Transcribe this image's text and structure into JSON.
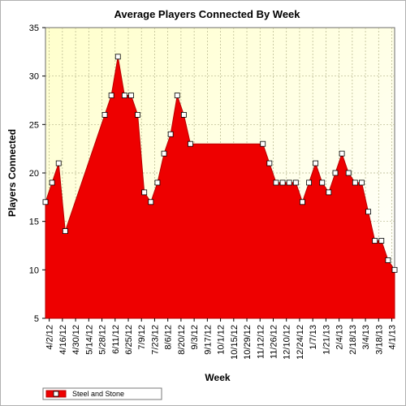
{
  "chart_data": {
    "type": "area",
    "title": "Average Players Connected By Week",
    "xlabel": "Week",
    "ylabel": "Players Connected",
    "ylim": [
      5,
      35
    ],
    "yticks": [
      5,
      10,
      15,
      20,
      25,
      30,
      35
    ],
    "grid": true,
    "legend_position": "bottom-left",
    "x_tick_labels": [
      "4/2/12",
      "4/16/12",
      "4/30/12",
      "5/14/12",
      "5/28/12",
      "6/11/12",
      "6/25/12",
      "7/9/12",
      "7/23/12",
      "8/6/12",
      "8/20/12",
      "9/3/12",
      "9/17/12",
      "10/1/12",
      "10/15/12",
      "10/29/12",
      "11/12/12",
      "11/26/12",
      "12/10/12",
      "12/24/12",
      "1/7/13",
      "1/21/13",
      "2/4/13",
      "2/18/13",
      "3/4/13",
      "3/18/13",
      "4/1/13"
    ],
    "colors": {
      "area": "#ee0000",
      "edge": "#b80000",
      "plot_bg_top": "#ffffcc",
      "plot_bg_bottom": "#ffffff",
      "grid": "#b4b48a",
      "marker_fill": "#ffffff"
    },
    "series": [
      {
        "name": "Steel and Stone",
        "points": [
          [
            "3/29/12",
            17
          ],
          [
            "4/5/12",
            19
          ],
          [
            "4/12/12",
            21
          ],
          [
            "4/19/12",
            14
          ],
          [
            "5/31/12",
            26
          ],
          [
            "6/7/12",
            28
          ],
          [
            "6/14/12",
            32
          ],
          [
            "6/21/12",
            28
          ],
          [
            "6/28/12",
            28
          ],
          [
            "7/5/12",
            26
          ],
          [
            "7/12/12",
            18
          ],
          [
            "7/19/12",
            17
          ],
          [
            "7/26/12",
            19
          ],
          [
            "8/2/12",
            22
          ],
          [
            "8/9/12",
            24
          ],
          [
            "8/16/12",
            28
          ],
          [
            "8/23/12",
            26
          ],
          [
            "8/30/12",
            23
          ],
          [
            "11/15/12",
            23
          ],
          [
            "11/22/12",
            21
          ],
          [
            "11/29/12",
            19
          ],
          [
            "12/6/12",
            19
          ],
          [
            "12/13/12",
            19
          ],
          [
            "12/20/12",
            19
          ],
          [
            "12/27/12",
            17
          ],
          [
            "1/3/13",
            19
          ],
          [
            "1/10/13",
            21
          ],
          [
            "1/17/13",
            19
          ],
          [
            "1/24/13",
            18
          ],
          [
            "1/31/13",
            20
          ],
          [
            "2/7/13",
            22
          ],
          [
            "2/14/13",
            20
          ],
          [
            "2/21/13",
            19
          ],
          [
            "2/28/13",
            19
          ],
          [
            "3/7/13",
            16
          ],
          [
            "3/14/13",
            13
          ],
          [
            "3/21/13",
            13
          ],
          [
            "3/28/13",
            11
          ],
          [
            "4/4/13",
            10
          ]
        ]
      }
    ]
  }
}
